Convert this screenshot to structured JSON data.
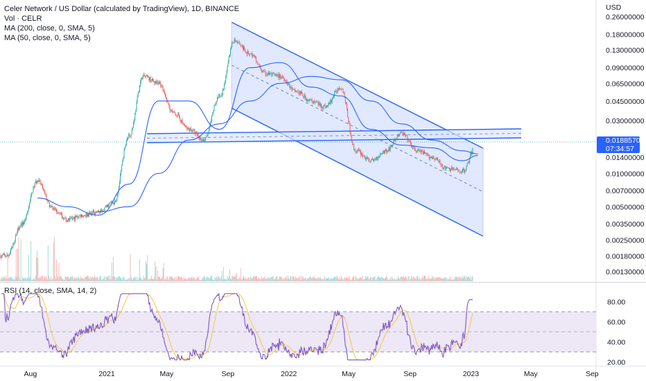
{
  "legend": {
    "title": "Celer Network / US Dollar (calculated by TradingView), 1D, BINANCE",
    "vol": "Vol · CELR",
    "ma200": "MA (200, close, 0, SMA, 5)",
    "ma50": "MA (50, close, 0, SMA, 5)"
  },
  "rsi_legend": "RSI (14, close, SMA, 14, 2)",
  "last_price": {
    "value": "0.01885702",
    "countdown": "07:34:57"
  },
  "colors": {
    "up": "#26a69a",
    "down": "#ef5350",
    "ma": "#2962ff",
    "channel_fill": "#dbe5ff",
    "rsi": "#7e57c2",
    "rsi_ma": "#f5c842",
    "rsi_band": "#ede7f6"
  },
  "chart_data": [
    {
      "type": "line",
      "title": "Celer Network / US Dollar (calculated by TradingView), 1D, BINANCE",
      "scale": "log",
      "yunit": "USD",
      "y_ticks": [
        "0.26000000",
        "0.18000000",
        "0.13000000",
        "0.09000000",
        "0.06500000",
        "0.04500000",
        "0.03000000",
        "0.01400000",
        "0.01000000",
        "0.00700000",
        "0.00500000",
        "0.00350000",
        "0.00250000",
        "0.00180000",
        "0.00130000"
      ],
      "y_tick_values": [
        0.26,
        0.18,
        0.13,
        0.09,
        0.065,
        0.045,
        0.03,
        0.014,
        0.01,
        0.007,
        0.005,
        0.0035,
        0.0025,
        0.0018,
        0.0013
      ],
      "x_ticks": [
        "Aug",
        "2021",
        "May",
        "Sep",
        "2022",
        "May",
        "Sep",
        "2023",
        "May",
        "Sep"
      ],
      "series": [
        {
          "name": "Price",
          "x": [
            "2020-06",
            "2020-07",
            "2020-08",
            "2020-09",
            "2020-10",
            "2020-11",
            "2020-12",
            "2021-01",
            "2021-02",
            "2021-03",
            "2021-04",
            "2021-05",
            "2021-06",
            "2021-07",
            "2021-08",
            "2021-09",
            "2021-10",
            "2021-11",
            "2021-12",
            "2022-01",
            "2022-02",
            "2022-03",
            "2022-04",
            "2022-05",
            "2022-06",
            "2022-07",
            "2022-08",
            "2022-09",
            "2022-10",
            "2022-11",
            "2022-12",
            "2023-01"
          ],
          "values": [
            0.0018,
            0.0035,
            0.0085,
            0.0048,
            0.0038,
            0.0042,
            0.0045,
            0.0055,
            0.022,
            0.075,
            0.065,
            0.035,
            0.025,
            0.02,
            0.05,
            0.16,
            0.12,
            0.08,
            0.075,
            0.055,
            0.045,
            0.04,
            0.06,
            0.016,
            0.013,
            0.016,
            0.023,
            0.016,
            0.014,
            0.011,
            0.0105,
            0.0189
          ]
        },
        {
          "name": "MA (50, close, 0, SMA, 5)",
          "x": [
            "2020-08",
            "2020-10",
            "2020-12",
            "2021-02",
            "2021-04",
            "2021-06",
            "2021-08",
            "2021-10",
            "2021-12",
            "2022-02",
            "2022-04",
            "2022-06",
            "2022-08",
            "2022-10",
            "2022-12",
            "2023-01"
          ],
          "values": [
            0.006,
            0.005,
            0.0042,
            0.008,
            0.045,
            0.045,
            0.025,
            0.09,
            0.1,
            0.06,
            0.05,
            0.025,
            0.018,
            0.017,
            0.013,
            0.0145
          ]
        },
        {
          "name": "MA (200, close, 0, SMA, 5)",
          "x": [
            "2020-12",
            "2021-02",
            "2021-04",
            "2021-06",
            "2021-08",
            "2021-10",
            "2021-12",
            "2022-02",
            "2022-04",
            "2022-06",
            "2022-08",
            "2022-10",
            "2022-12",
            "2023-01"
          ],
          "values": [
            0.0045,
            0.005,
            0.01,
            0.02,
            0.028,
            0.045,
            0.065,
            0.075,
            0.07,
            0.045,
            0.028,
            0.02,
            0.016,
            0.015
          ]
        }
      ]
    },
    {
      "type": "bar",
      "title": "Vol · CELR"
    },
    {
      "type": "line",
      "title": "RSI (14, close, SMA, 14, 2)",
      "ylim": [
        20,
        85
      ],
      "y_ticks": [
        "80.00",
        "60.00",
        "40.00",
        "20.00"
      ],
      "y_tick_values": [
        80,
        60,
        40,
        20
      ],
      "bands": [
        30,
        50,
        70
      ]
    }
  ]
}
